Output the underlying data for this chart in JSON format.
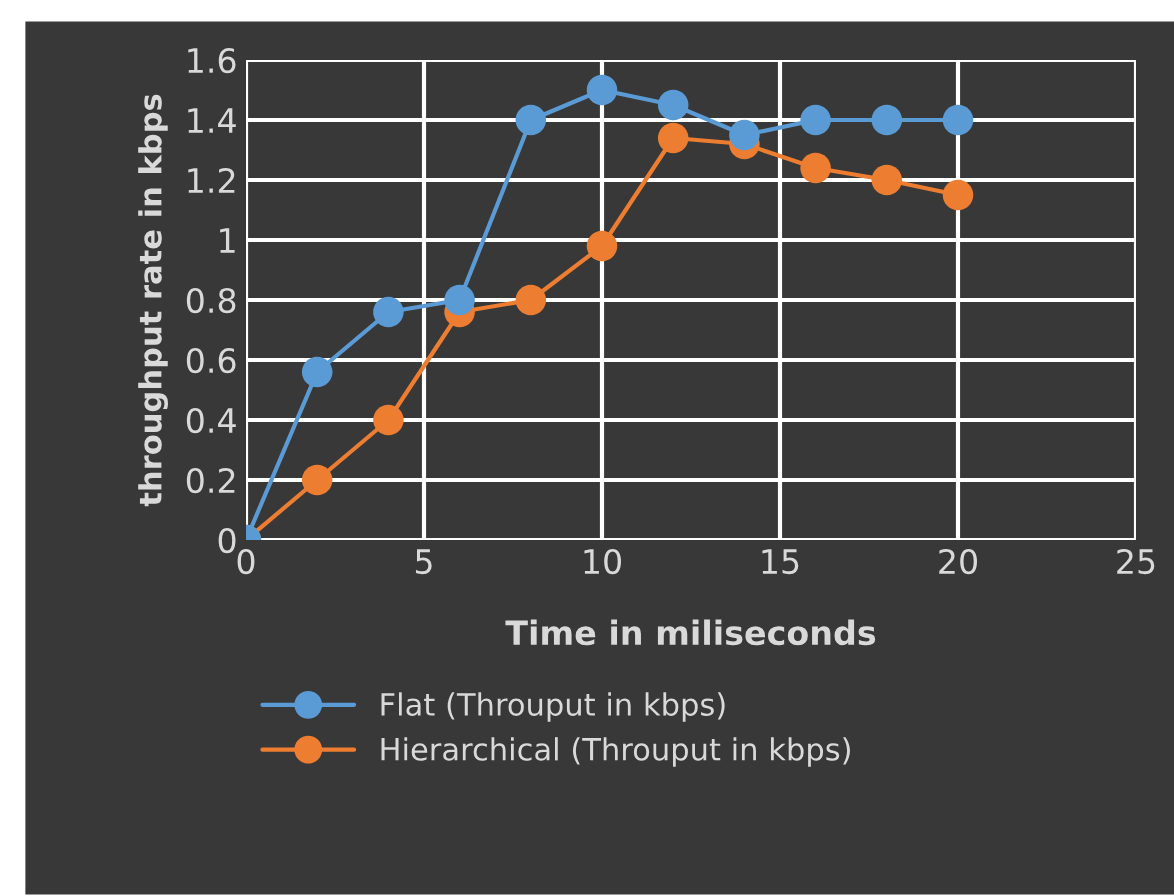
{
  "chart_data": {
    "type": "line",
    "xlabel": "Time in miliseconds",
    "ylabel": "throughput rate in kbps",
    "x": [
      0,
      2,
      4,
      6,
      8,
      10,
      12,
      14,
      16,
      18,
      20
    ],
    "series": [
      {
        "name": "Flat (Throuput in kbps)",
        "color": "#5b9bd5",
        "values": [
          0,
          0.56,
          0.76,
          0.8,
          1.4,
          1.5,
          1.45,
          1.35,
          1.4,
          1.4,
          1.4
        ]
      },
      {
        "name": "Hierarchical (Throuput in kbps)",
        "color": "#ed7d31",
        "values": [
          0,
          0.2,
          0.4,
          0.76,
          0.8,
          0.98,
          1.34,
          1.32,
          1.24,
          1.2,
          1.15
        ]
      }
    ],
    "xlim": [
      0,
      25
    ],
    "xticks": [
      0,
      5,
      10,
      15,
      20,
      25
    ],
    "ylim": [
      0,
      1.6
    ],
    "yticks": [
      0,
      0.2,
      0.4,
      0.6,
      0.8,
      1,
      1.2,
      1.4,
      1.6
    ],
    "grid": true,
    "legend": "bottom",
    "marker": "circle",
    "line_style": "solid"
  }
}
